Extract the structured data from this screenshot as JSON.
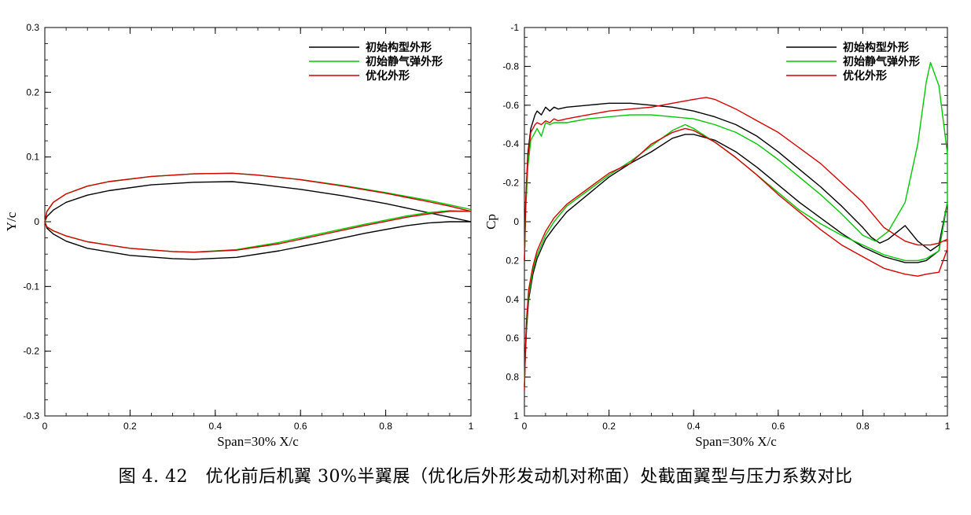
{
  "caption": "图 4. 42　优化前后机翼 30%半翼展（优化后外形发动机对称面）处截面翼型与压力系数对比",
  "colors": {
    "black": "#000000",
    "green": "#00c800",
    "red": "#d40000"
  },
  "chart_data": [
    {
      "type": "line",
      "id": "left",
      "xlabel": "Span=30% X/c",
      "ylabel": "Y/c",
      "xlim": [
        0,
        1
      ],
      "ylim": [
        -0.3,
        0.3
      ],
      "y_reversed": false,
      "xticks": [
        0,
        0.2,
        0.4,
        0.6,
        0.8,
        1
      ],
      "xtick_labels": [
        "0",
        "0.2",
        "0.4",
        "0.6",
        "0.8",
        "1"
      ],
      "yticks": [
        -0.3,
        -0.2,
        -0.1,
        0,
        0.1,
        0.2,
        0.3
      ],
      "ytick_labels": [
        "-0.3",
        "-0.2",
        "-0.1",
        "0",
        "0.1",
        "0.2",
        "0.3"
      ],
      "legend": {
        "position": "top-right",
        "entries": [
          "初始构型外形",
          "初始静气弹外形",
          "优化外形"
        ]
      },
      "series": [
        {
          "name": "初始构型外形",
          "color": "#000000",
          "x": [
            1,
            0.95,
            0.9,
            0.8,
            0.7,
            0.6,
            0.5,
            0.44,
            0.35,
            0.25,
            0.15,
            0.1,
            0.05,
            0.02,
            0.005,
            0,
            0.005,
            0.02,
            0.05,
            0.1,
            0.2,
            0.3,
            0.35,
            0.45,
            0.55,
            0.65,
            0.75,
            0.85,
            0.9,
            0.95,
            1
          ],
          "y": [
            0,
            0.007,
            0.014,
            0.028,
            0.04,
            0.05,
            0.058,
            0.062,
            0.061,
            0.057,
            0.048,
            0.041,
            0.03,
            0.018,
            0.008,
            0,
            -0.01,
            -0.019,
            -0.03,
            -0.041,
            -0.052,
            -0.057,
            -0.058,
            -0.055,
            -0.045,
            -0.032,
            -0.018,
            -0.006,
            -0.002,
            0,
            0
          ]
        },
        {
          "name": "初始静气弹外形",
          "color": "#00c800",
          "x": [
            1,
            0.95,
            0.9,
            0.8,
            0.7,
            0.6,
            0.5,
            0.44,
            0.35,
            0.25,
            0.15,
            0.1,
            0.05,
            0.02,
            0.005,
            0,
            0.005,
            0.02,
            0.05,
            0.1,
            0.2,
            0.3,
            0.35,
            0.45,
            0.55,
            0.65,
            0.75,
            0.85,
            0.9,
            0.95,
            1
          ],
          "y": [
            0.019,
            0.026,
            0.033,
            0.045,
            0.056,
            0.065,
            0.072,
            0.075,
            0.074,
            0.07,
            0.062,
            0.055,
            0.043,
            0.03,
            0.016,
            0,
            -0.008,
            -0.014,
            -0.022,
            -0.031,
            -0.041,
            -0.046,
            -0.047,
            -0.043,
            -0.032,
            -0.018,
            -0.004,
            0.009,
            0.014,
            0.017,
            0.016
          ]
        },
        {
          "name": "优化外形",
          "color": "#d40000",
          "x": [
            1,
            0.95,
            0.9,
            0.8,
            0.7,
            0.6,
            0.5,
            0.44,
            0.35,
            0.25,
            0.15,
            0.1,
            0.05,
            0.02,
            0.005,
            0,
            0.005,
            0.02,
            0.05,
            0.1,
            0.2,
            0.3,
            0.35,
            0.45,
            0.55,
            0.65,
            0.75,
            0.85,
            0.9,
            0.95,
            1
          ],
          "y": [
            0.016,
            0.024,
            0.031,
            0.044,
            0.055,
            0.065,
            0.072,
            0.075,
            0.074,
            0.07,
            0.062,
            0.055,
            0.043,
            0.03,
            0.016,
            0,
            -0.008,
            -0.014,
            -0.022,
            -0.031,
            -0.041,
            -0.046,
            -0.047,
            -0.044,
            -0.034,
            -0.02,
            -0.006,
            0.007,
            0.012,
            0.016,
            0.016
          ]
        }
      ]
    },
    {
      "type": "line",
      "id": "right",
      "xlabel": "Span=30% X/c",
      "ylabel": "Cp",
      "xlim": [
        0,
        1
      ],
      "ylim": [
        1,
        -1
      ],
      "y_reversed": true,
      "xticks": [
        0,
        0.2,
        0.4,
        0.6,
        0.8,
        1
      ],
      "xtick_labels": [
        "0",
        "0.2",
        "0.4",
        "0.6",
        "0.8",
        "1"
      ],
      "yticks": [
        -1,
        -0.8,
        -0.6,
        -0.4,
        -0.2,
        0,
        0.2,
        0.4,
        0.6,
        0.8,
        1
      ],
      "ytick_labels": [
        "-1",
        "-0.8",
        "-0.6",
        "-0.4",
        "-0.2",
        "0",
        "0.2",
        "0.4",
        "0.6",
        "0.8",
        "1"
      ],
      "legend": {
        "position": "top-right",
        "entries": [
          "初始构型外形",
          "初始静气弹外形",
          "优化外形"
        ]
      },
      "series": [
        {
          "name": "初始构型外形",
          "color": "#000000",
          "x": [
            0,
            0.003,
            0.008,
            0.015,
            0.025,
            0.03,
            0.04,
            0.05,
            0.06,
            0.07,
            0.08,
            0.1,
            0.15,
            0.2,
            0.25,
            0.3,
            0.35,
            0.4,
            0.45,
            0.5,
            0.55,
            0.6,
            0.65,
            0.7,
            0.75,
            0.8,
            0.82,
            0.84,
            0.86,
            0.9,
            0.93,
            0.96,
            0.98,
            1,
            1,
            0.98,
            0.95,
            0.93,
            0.9,
            0.85,
            0.8,
            0.75,
            0.7,
            0.65,
            0.6,
            0.55,
            0.5,
            0.45,
            0.4,
            0.38,
            0.35,
            0.3,
            0.25,
            0.2,
            0.15,
            0.1,
            0.07,
            0.05,
            0.03,
            0.02,
            0.01,
            0.005,
            0.002,
            0
          ],
          "y": [
            0.2,
            -0.1,
            -0.35,
            -0.48,
            -0.55,
            -0.57,
            -0.55,
            -0.59,
            -0.57,
            -0.59,
            -0.58,
            -0.59,
            -0.6,
            -0.61,
            -0.61,
            -0.6,
            -0.59,
            -0.57,
            -0.54,
            -0.5,
            -0.44,
            -0.36,
            -0.27,
            -0.18,
            -0.08,
            0.03,
            0.08,
            0.11,
            0.09,
            0.02,
            0.1,
            0.15,
            0.12,
            -0.1,
            -0.1,
            0.15,
            0.2,
            0.21,
            0.21,
            0.18,
            0.13,
            0.06,
            -0.02,
            -0.1,
            -0.19,
            -0.28,
            -0.36,
            -0.42,
            -0.45,
            -0.45,
            -0.43,
            -0.36,
            -0.3,
            -0.23,
            -0.14,
            -0.05,
            0.03,
            0.09,
            0.19,
            0.27,
            0.4,
            0.55,
            0.7,
            0.85
          ]
        },
        {
          "name": "初始静气弹外形",
          "color": "#00c800",
          "x": [
            0,
            0.003,
            0.008,
            0.015,
            0.025,
            0.03,
            0.04,
            0.05,
            0.06,
            0.07,
            0.08,
            0.1,
            0.15,
            0.2,
            0.25,
            0.3,
            0.35,
            0.4,
            0.45,
            0.5,
            0.55,
            0.6,
            0.65,
            0.7,
            0.75,
            0.8,
            0.83,
            0.86,
            0.9,
            0.93,
            0.95,
            0.96,
            0.98,
            1,
            1,
            0.98,
            0.95,
            0.93,
            0.9,
            0.85,
            0.8,
            0.75,
            0.7,
            0.65,
            0.6,
            0.55,
            0.5,
            0.45,
            0.4,
            0.38,
            0.35,
            0.3,
            0.25,
            0.2,
            0.15,
            0.1,
            0.07,
            0.05,
            0.03,
            0.02,
            0.01,
            0.005,
            0.002,
            0
          ],
          "y": [
            0.2,
            -0.05,
            -0.28,
            -0.42,
            -0.46,
            -0.48,
            -0.44,
            -0.51,
            -0.5,
            -0.51,
            -0.51,
            -0.51,
            -0.53,
            -0.54,
            -0.55,
            -0.55,
            -0.54,
            -0.53,
            -0.5,
            -0.46,
            -0.4,
            -0.32,
            -0.23,
            -0.14,
            -0.04,
            0.07,
            0.1,
            0.05,
            -0.1,
            -0.4,
            -0.72,
            -0.82,
            -0.7,
            -0.35,
            -0.1,
            0.15,
            0.19,
            0.2,
            0.2,
            0.17,
            0.12,
            0.07,
            0.01,
            -0.06,
            -0.15,
            -0.24,
            -0.33,
            -0.41,
            -0.48,
            -0.5,
            -0.47,
            -0.39,
            -0.31,
            -0.24,
            -0.16,
            -0.08,
            0,
            0.07,
            0.17,
            0.25,
            0.38,
            0.52,
            0.68,
            0.84
          ]
        },
        {
          "name": "优化外形",
          "color": "#d40000",
          "x": [
            0,
            0.003,
            0.008,
            0.015,
            0.025,
            0.03,
            0.04,
            0.05,
            0.06,
            0.07,
            0.08,
            0.1,
            0.15,
            0.2,
            0.25,
            0.3,
            0.35,
            0.4,
            0.43,
            0.45,
            0.5,
            0.55,
            0.6,
            0.65,
            0.7,
            0.75,
            0.8,
            0.85,
            0.9,
            0.93,
            0.96,
            0.98,
            1,
            1,
            0.98,
            0.95,
            0.93,
            0.9,
            0.85,
            0.8,
            0.75,
            0.7,
            0.65,
            0.6,
            0.55,
            0.5,
            0.45,
            0.4,
            0.38,
            0.35,
            0.3,
            0.25,
            0.2,
            0.15,
            0.1,
            0.07,
            0.05,
            0.03,
            0.02,
            0.01,
            0.005,
            0.002,
            0
          ],
          "y": [
            0.2,
            -0.1,
            -0.33,
            -0.46,
            -0.5,
            -0.51,
            -0.5,
            -0.52,
            -0.51,
            -0.53,
            -0.52,
            -0.53,
            -0.55,
            -0.57,
            -0.58,
            -0.59,
            -0.61,
            -0.63,
            -0.64,
            -0.63,
            -0.58,
            -0.52,
            -0.46,
            -0.38,
            -0.3,
            -0.2,
            -0.1,
            0.03,
            0.1,
            0.12,
            0.12,
            0.11,
            0.09,
            0.14,
            0.26,
            0.27,
            0.28,
            0.27,
            0.24,
            0.18,
            0.12,
            0.04,
            -0.05,
            -0.14,
            -0.24,
            -0.33,
            -0.41,
            -0.47,
            -0.48,
            -0.46,
            -0.4,
            -0.3,
            -0.25,
            -0.17,
            -0.09,
            -0.02,
            0.05,
            0.15,
            0.23,
            0.35,
            0.5,
            0.68,
            0.87
          ]
        }
      ]
    }
  ]
}
